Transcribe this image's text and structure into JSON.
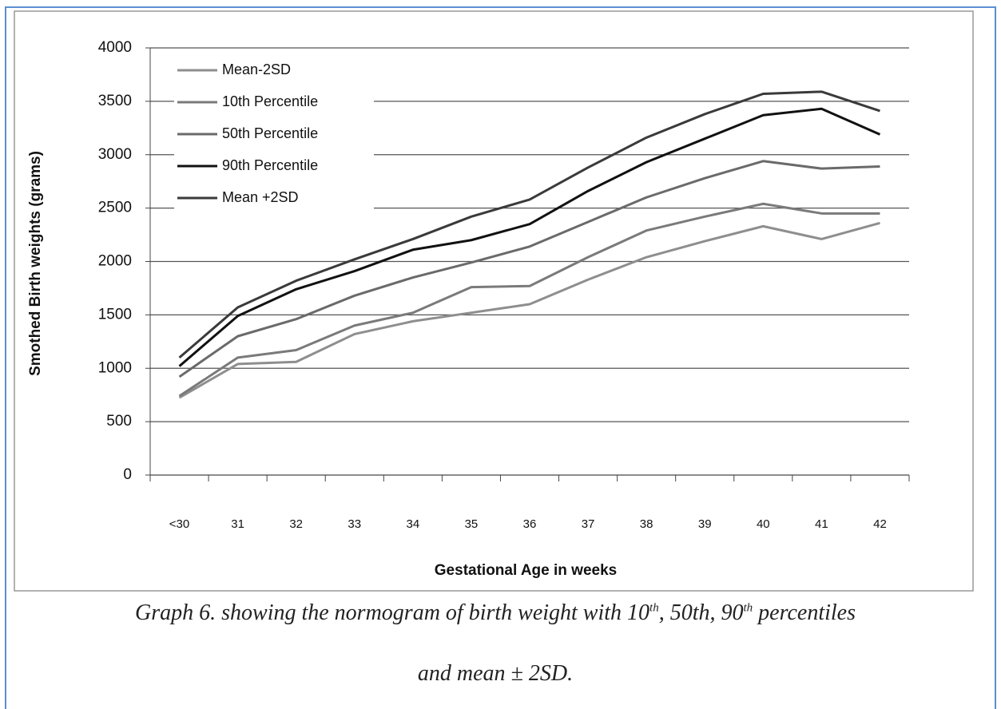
{
  "chart_data": {
    "type": "line",
    "y_label": "Smothed Birth weights (grams)",
    "x_label": "Gestational Age in weeks",
    "categories": [
      "<30",
      "31",
      "32",
      "33",
      "34",
      "35",
      "36",
      "37",
      "38",
      "39",
      "40",
      "41",
      "42"
    ],
    "series": [
      {
        "name": "Mean-2SD",
        "color": "#8e8e8e",
        "values": [
          725,
          1040,
          1060,
          1320,
          1440,
          1520,
          1600,
          1830,
          2040,
          2190,
          2330,
          2210,
          2360
        ]
      },
      {
        "name": "10th Percentile",
        "color": "#7a7a7a",
        "values": [
          740,
          1100,
          1170,
          1400,
          1520,
          1760,
          1770,
          2040,
          2290,
          2420,
          2540,
          2450,
          2450
        ]
      },
      {
        "name": "50th Percentile",
        "color": "#6a6a6a",
        "values": [
          920,
          1300,
          1460,
          1680,
          1850,
          1990,
          2140,
          2370,
          2600,
          2780,
          2940,
          2870,
          2890
        ]
      },
      {
        "name": "90th Percentile",
        "color": "#111111",
        "values": [
          1020,
          1490,
          1740,
          1910,
          2110,
          2200,
          2350,
          2660,
          2930,
          3150,
          3370,
          3430,
          3190
        ]
      },
      {
        "name": "Mean +2SD",
        "color": "#3a3a3a",
        "values": [
          1100,
          1570,
          1820,
          2020,
          2210,
          2420,
          2580,
          2880,
          3160,
          3380,
          3570,
          3590,
          3410
        ]
      }
    ],
    "ylim": [
      0,
      4000
    ],
    "yticks": [
      0,
      500,
      1000,
      1500,
      2000,
      2500,
      3000,
      3500,
      4000
    ],
    "grid": true,
    "legend": "upper left"
  },
  "caption": {
    "line1": [
      "Graph 6. showing the normogram of birth weight with 10",
      "th",
      ", 50th, 90",
      "th",
      " percentiles"
    ],
    "line2": "and mean ± 2SD."
  }
}
